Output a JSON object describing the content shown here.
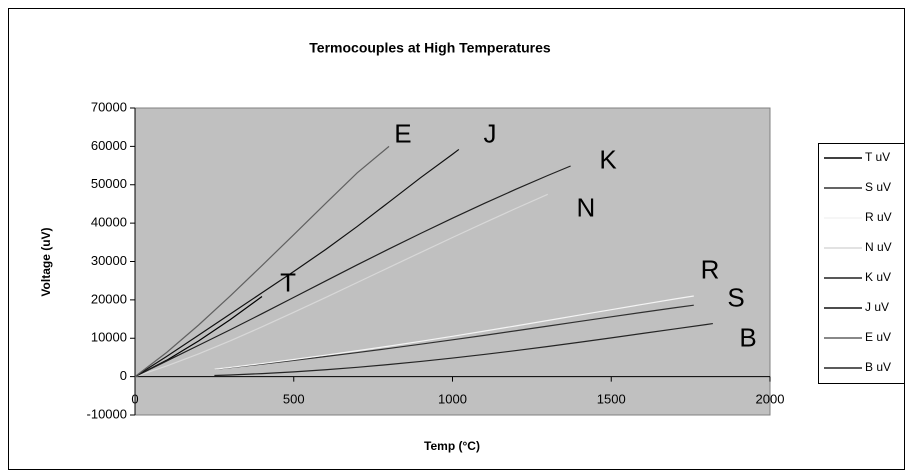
{
  "chart_data": {
    "type": "line",
    "title": "Termocouples at High Temperatures",
    "xlabel": "Temp (°C)",
    "ylabel": "Voltage (uV)",
    "xlim": [
      0,
      2000
    ],
    "xticks": [
      0,
      500,
      1000,
      1500,
      2000
    ],
    "ylim": [
      -10000,
      70000
    ],
    "yticks": [
      -10000,
      0,
      10000,
      20000,
      30000,
      40000,
      50000,
      60000,
      70000
    ],
    "series": [
      {
        "name": "T uV",
        "color": "#000000",
        "x": [
          0,
          100,
          200,
          300,
          400
        ],
        "values": [
          0,
          4279,
          9288,
          14862,
          20872
        ]
      },
      {
        "name": "S uV",
        "color": "#303030",
        "x": [
          250,
          300,
          400,
          500,
          600,
          700,
          800,
          900,
          1000,
          1100,
          1200,
          1300,
          1400,
          1500,
          1600,
          1700,
          1760
        ],
        "values": [
          1874,
          2323,
          3259,
          4233,
          5239,
          6275,
          7345,
          8449,
          9587,
          10757,
          11951,
          13159,
          14373,
          15582,
          16777,
          17947,
          18612
        ]
      },
      {
        "name": "R uV",
        "color": "#f4f4f4",
        "x": [
          250,
          300,
          400,
          500,
          600,
          700,
          800,
          900,
          1000,
          1100,
          1200,
          1300,
          1400,
          1500,
          1600,
          1700,
          1760
        ],
        "values": [
          1923,
          2401,
          3408,
          4471,
          5583,
          6743,
          7950,
          9205,
          10506,
          11850,
          13228,
          14629,
          16040,
          17451,
          18849,
          20222,
          21003
        ]
      },
      {
        "name": "N uV",
        "color": "#d8d8d8",
        "x": [
          0,
          100,
          200,
          300,
          400,
          500,
          600,
          700,
          800,
          900,
          1000,
          1100,
          1200,
          1300
        ],
        "values": [
          0,
          2774,
          5913,
          9341,
          12974,
          16748,
          20613,
          24527,
          28455,
          32371,
          36256,
          40087,
          43846,
          47513
        ]
      },
      {
        "name": "K uV",
        "color": "#202020",
        "x": [
          0,
          100,
          200,
          300,
          400,
          500,
          600,
          700,
          800,
          900,
          1000,
          1100,
          1200,
          1300,
          1372
        ],
        "values": [
          0,
          4096,
          8138,
          12209,
          16397,
          20644,
          24905,
          29129,
          33275,
          37326,
          41276,
          45119,
          48838,
          52410,
          54886
        ]
      },
      {
        "name": "J uV",
        "color": "#101010",
        "x": [
          0,
          100,
          200,
          300,
          400,
          500,
          600,
          700,
          800,
          900,
          1000,
          1020
        ],
        "values": [
          0,
          5269,
          10779,
          16327,
          21848,
          27393,
          33102,
          39132,
          45494,
          51877,
          57953,
          59200
        ]
      },
      {
        "name": "E uV",
        "color": "#606060",
        "x": [
          0,
          100,
          200,
          300,
          400,
          500,
          600,
          700,
          800
        ],
        "values": [
          0,
          6319,
          13421,
          21036,
          28946,
          36999,
          45093,
          53112,
          60000
        ]
      },
      {
        "name": "B uV",
        "color": "#252525",
        "x": [
          250,
          300,
          400,
          500,
          600,
          700,
          800,
          900,
          1000,
          1100,
          1200,
          1300,
          1400,
          1500,
          1600,
          1700,
          1800,
          1820
        ],
        "values": [
          291,
          431,
          787,
          1242,
          1792,
          2431,
          3154,
          3957,
          4834,
          5780,
          6786,
          7848,
          8956,
          10099,
          11263,
          12433,
          13591,
          13820
        ]
      }
    ],
    "annotations": [
      {
        "text": "E",
        "x": 844,
        "y": 62800
      },
      {
        "text": "J",
        "x": 1118,
        "y": 62800
      },
      {
        "text": "K",
        "x": 1490,
        "y": 56000
      },
      {
        "text": "N",
        "x": 1420,
        "y": 43500
      },
      {
        "text": "T",
        "x": 482,
        "y": 24000
      },
      {
        "text": "R",
        "x": 1811,
        "y": 27400
      },
      {
        "text": "S",
        "x": 1893,
        "y": 20100
      },
      {
        "text": "B",
        "x": 1931,
        "y": 9600
      }
    ]
  }
}
